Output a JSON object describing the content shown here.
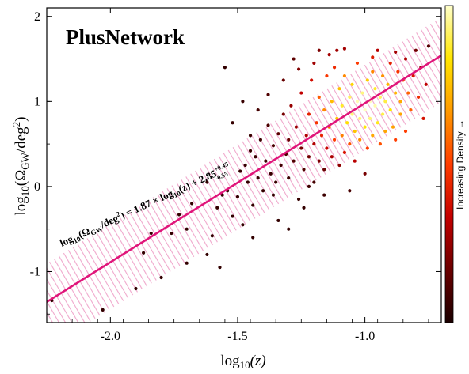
{
  "chart_data": {
    "type": "scatter",
    "title": "PlusNetwork",
    "xlabel_main": "log",
    "xlabel_sub": "10",
    "xlabel_arg": "(z)",
    "ylabel_main": "log",
    "ylabel_sub": "10",
    "ylabel_arg": "(Ω",
    "ylabel_arg_sub": "GW",
    "ylabel_arg_tail": "/deg",
    "ylabel_arg_sup": "2",
    "ylabel_close": ")",
    "xlim": [
      -2.25,
      -0.7
    ],
    "ylim": [
      -1.6,
      2.1
    ],
    "xticks": [
      -2.0,
      -1.5,
      -1.0
    ],
    "xtick_labels": [
      "-2.0",
      "-1.5",
      "-1.0"
    ],
    "yticks": [
      -1,
      0,
      1,
      2
    ],
    "ytick_labels": [
      "-1",
      "0",
      "1",
      "2"
    ],
    "fit": {
      "slope": 1.87,
      "intercept": 2.85,
      "upper_err": 0.45,
      "lower_err": 0.55,
      "line_color": "#e0157a",
      "band_color": "#f0a8cc"
    },
    "fit_label": {
      "head": "log",
      "sub1": "10",
      "mid1": "(Ω",
      "sub2": "GW",
      "mid2": "/deg",
      "sup1": "2",
      "mid3": ") = 1.87 × log",
      "sub3": "10",
      "mid4": "(z) + 2.85",
      "sup2": "+0.45",
      "sub4": "-0.55"
    },
    "colorbar_label": "Increasing Density →",
    "colormap": [
      "#1a0000",
      "#6b0000",
      "#c40000",
      "#ff3c00",
      "#ff9a00",
      "#ffe600",
      "#ffffcc"
    ],
    "density_peak": {
      "x": -1.0,
      "y": 0.95
    },
    "points": [
      [
        -2.23,
        -1.34
      ],
      [
        -2.03,
        -1.45
      ],
      [
        -1.9,
        -1.2
      ],
      [
        -1.87,
        -0.78
      ],
      [
        -1.84,
        -0.55
      ],
      [
        -1.8,
        -1.07
      ],
      [
        -1.73,
        -0.33
      ],
      [
        -1.7,
        -0.5
      ],
      [
        -1.62,
        -0.8
      ],
      [
        -1.6,
        -0.58
      ],
      [
        -1.58,
        -0.25
      ],
      [
        -1.56,
        -0.1
      ],
      [
        -1.55,
        1.4
      ],
      [
        -1.54,
        -0.05
      ],
      [
        -1.52,
        -0.35
      ],
      [
        -1.5,
        -0.12
      ],
      [
        -1.49,
        0.18
      ],
      [
        -1.48,
        -0.45
      ],
      [
        -1.47,
        0.25
      ],
      [
        -1.46,
        0.05
      ],
      [
        -1.45,
        0.42
      ],
      [
        -1.44,
        -0.22
      ],
      [
        -1.43,
        0.35
      ],
      [
        -1.42,
        0.1
      ],
      [
        -1.41,
        0.55
      ],
      [
        -1.4,
        -0.05
      ],
      [
        -1.39,
        0.3
      ],
      [
        -1.38,
        0.72
      ],
      [
        -1.37,
        0.15
      ],
      [
        -1.36,
        0.48
      ],
      [
        -1.35,
        0.05
      ],
      [
        -1.34,
        0.62
      ],
      [
        -1.33,
        0.25
      ],
      [
        -1.32,
        0.85
      ],
      [
        -1.31,
        0.38
      ],
      [
        -1.3,
        0.1
      ],
      [
        -1.3,
        0.55
      ],
      [
        -1.29,
        0.95
      ],
      [
        -1.28,
        0.3
      ],
      [
        -1.27,
        0.7
      ],
      [
        -1.26,
        -0.15
      ],
      [
        -1.25,
        0.45
      ],
      [
        -1.25,
        1.1
      ],
      [
        -1.24,
        0.2
      ],
      [
        -1.23,
        0.6
      ],
      [
        -1.22,
        0.85
      ],
      [
        -1.22,
        0.35
      ],
      [
        -1.21,
        1.25
      ],
      [
        -1.2,
        0.5
      ],
      [
        -1.2,
        0.05
      ],
      [
        -1.19,
        0.75
      ],
      [
        -1.18,
        0.3
      ],
      [
        -1.18,
        1.05
      ],
      [
        -1.17,
        0.6
      ],
      [
        -1.16,
        0.9
      ],
      [
        -1.16,
        0.2
      ],
      [
        -1.15,
        1.3
      ],
      [
        -1.15,
        0.45
      ],
      [
        -1.14,
        0.7
      ],
      [
        -1.13,
        1.0
      ],
      [
        -1.13,
        0.35
      ],
      [
        -1.12,
        0.55
      ],
      [
        -1.12,
        1.4
      ],
      [
        -1.11,
        0.8
      ],
      [
        -1.1,
        0.25
      ],
      [
        -1.1,
        1.15
      ],
      [
        -1.09,
        0.6
      ],
      [
        -1.09,
        0.95
      ],
      [
        -1.08,
        0.4
      ],
      [
        -1.08,
        1.3
      ],
      [
        -1.07,
        0.75
      ],
      [
        -1.06,
        1.05
      ],
      [
        -1.06,
        0.5
      ],
      [
        -1.05,
        0.85
      ],
      [
        -1.05,
        1.2
      ],
      [
        -1.04,
        0.65
      ],
      [
        -1.04,
        0.3
      ],
      [
        -1.03,
        1.0
      ],
      [
        -1.03,
        1.45
      ],
      [
        -1.02,
        0.8
      ],
      [
        -1.02,
        0.55
      ],
      [
        -1.01,
        1.1
      ],
      [
        -1.0,
        0.9
      ],
      [
        -1.0,
        0.7
      ],
      [
        -0.99,
        1.25
      ],
      [
        -0.99,
        0.45
      ],
      [
        -0.98,
        1.0
      ],
      [
        -0.98,
        0.8
      ],
      [
        -0.97,
        1.35
      ],
      [
        -0.97,
        0.6
      ],
      [
        -0.96,
        0.95
      ],
      [
        -0.96,
        1.15
      ],
      [
        -0.95,
        0.75
      ],
      [
        -0.94,
        1.05
      ],
      [
        -0.94,
        0.5
      ],
      [
        -0.93,
        1.3
      ],
      [
        -0.93,
        0.85
      ],
      [
        -0.92,
        1.0
      ],
      [
        -0.92,
        0.65
      ],
      [
        -0.91,
        1.2
      ],
      [
        -0.9,
        0.9
      ],
      [
        -0.9,
        1.45
      ],
      [
        -0.89,
        0.7
      ],
      [
        -0.88,
        1.1
      ],
      [
        -0.88,
        0.55
      ],
      [
        -0.87,
        1.35
      ],
      [
        -0.86,
        0.85
      ],
      [
        -0.86,
        1.0
      ],
      [
        -0.85,
        1.25
      ],
      [
        -0.84,
        0.65
      ],
      [
        -0.84,
        1.5
      ],
      [
        -0.83,
        1.1
      ],
      [
        -0.82,
        0.9
      ],
      [
        -0.81,
        1.3
      ],
      [
        -0.8,
        1.6
      ],
      [
        -0.79,
        1.05
      ],
      [
        -0.78,
        1.4
      ],
      [
        -0.77,
        0.8
      ],
      [
        -0.76,
        1.2
      ],
      [
        -0.75,
        1.65
      ],
      [
        -1.14,
        1.55
      ],
      [
        -1.28,
        1.5
      ],
      [
        -1.18,
        1.6
      ],
      [
        -1.08,
        1.62
      ],
      [
        -0.95,
        1.6
      ],
      [
        -1.32,
        1.25
      ],
      [
        -1.42,
        0.9
      ],
      [
        -1.52,
        0.75
      ],
      [
        -1.34,
        -0.4
      ],
      [
        -1.24,
        -0.25
      ],
      [
        -1.06,
        -0.05
      ],
      [
        -1.16,
        -0.1
      ],
      [
        -1.22,
        0.0
      ],
      [
        -1.36,
        -0.1
      ],
      [
        -1.62,
        0.05
      ],
      [
        -1.68,
        -0.2
      ],
      [
        -1.76,
        -0.55
      ],
      [
        -1.44,
        -0.6
      ],
      [
        -1.3,
        -0.5
      ],
      [
        -1.0,
        0.15
      ],
      [
        -1.7,
        -0.9
      ],
      [
        -1.57,
        -0.95
      ],
      [
        -1.45,
        0.6
      ],
      [
        -1.2,
        1.45
      ],
      [
        -1.11,
        1.6
      ],
      [
        -0.97,
        1.52
      ],
      [
        -0.88,
        1.58
      ],
      [
        -1.26,
        1.38
      ],
      [
        -1.38,
        1.08
      ],
      [
        -1.48,
        1.0
      ]
    ]
  }
}
